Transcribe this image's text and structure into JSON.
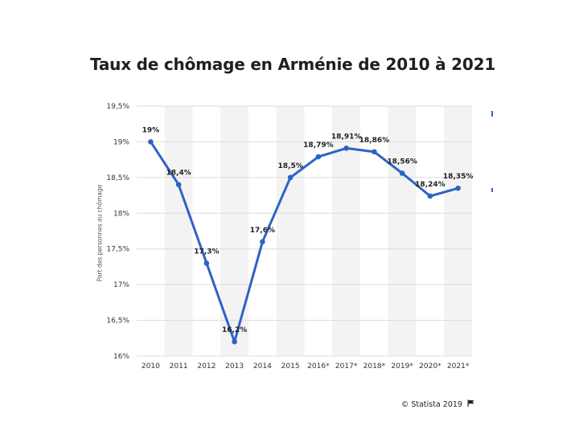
{
  "chart_data": {
    "type": "line",
    "title": "Taux de chômage en Arménie de 2010 à 2021",
    "ylabel": "Part des personnes au chômage",
    "xlabel": "",
    "categories": [
      "2010",
      "2011",
      "2012",
      "2013",
      "2014",
      "2015",
      "2016*",
      "2017*",
      "2018*",
      "2019*",
      "2020*",
      "2021*"
    ],
    "values": [
      19,
      18.4,
      17.3,
      16.2,
      17.6,
      18.5,
      18.79,
      18.91,
      18.86,
      18.56,
      18.24,
      18.35
    ],
    "data_labels": [
      "19%",
      "18,4%",
      "17,3%",
      "16,2%",
      "17,6%",
      "18,5%",
      "18,79%",
      "18,91%",
      "18,86%",
      "18,56%",
      "18,24%",
      "18,35%"
    ],
    "yticks": [
      "16%",
      "16,5%",
      "17%",
      "17,5%",
      "18%",
      "18,5%",
      "19%",
      "19,5%"
    ],
    "ylim": [
      16,
      19.5
    ],
    "grid": true,
    "line_color": "#2e63c4"
  },
  "footer": {
    "credit": "© Statista 2019",
    "flag_icon": "flag-icon"
  }
}
